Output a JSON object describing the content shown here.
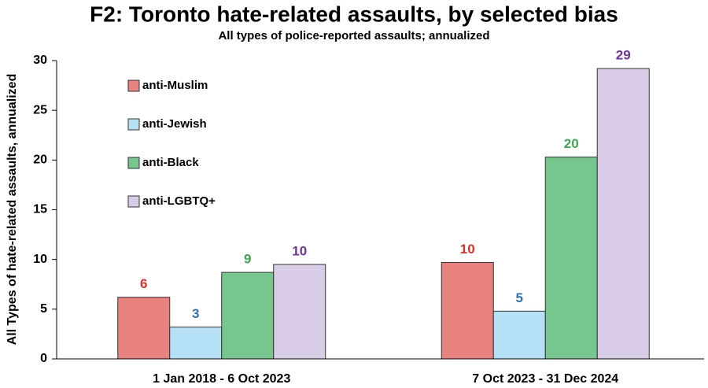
{
  "chart_data": {
    "type": "bar",
    "title": "F2: Toronto hate-related assaults, by selected bias",
    "subtitle": "All types of police-reported assaults; annualized",
    "y_label": "All Types of hate-related assaults, annualized",
    "categories": [
      "1 Jan 2018 - 6 Oct 2023",
      "7 Oct 2023 - 31 Dec 2024"
    ],
    "series": [
      {
        "name": "anti-Muslim",
        "color": "#e8827f",
        "label_color": "#e0302a",
        "values": [
          6.2,
          9.7
        ],
        "value_labels": [
          "6",
          "10"
        ]
      },
      {
        "name": "anti-Jewish",
        "color": "#b5e0f6",
        "label_color": "#2e74b5",
        "values": [
          3.2,
          4.8
        ],
        "value_labels": [
          "3",
          "5"
        ]
      },
      {
        "name": "anti-Black",
        "color": "#76c68e",
        "label_color": "#3fa552",
        "values": [
          8.7,
          20.3
        ],
        "value_labels": [
          "9",
          "20"
        ]
      },
      {
        "name": "anti-LGBTQ+",
        "color": "#d9cce6",
        "label_color": "#7030a0",
        "values": [
          9.5,
          29.2
        ],
        "value_labels": [
          "10",
          "29"
        ]
      }
    ],
    "ylim": [
      0,
      30
    ],
    "yticks": [
      0,
      5,
      10,
      15,
      20,
      25,
      30
    ],
    "grid": false,
    "legend": "upper-left"
  }
}
